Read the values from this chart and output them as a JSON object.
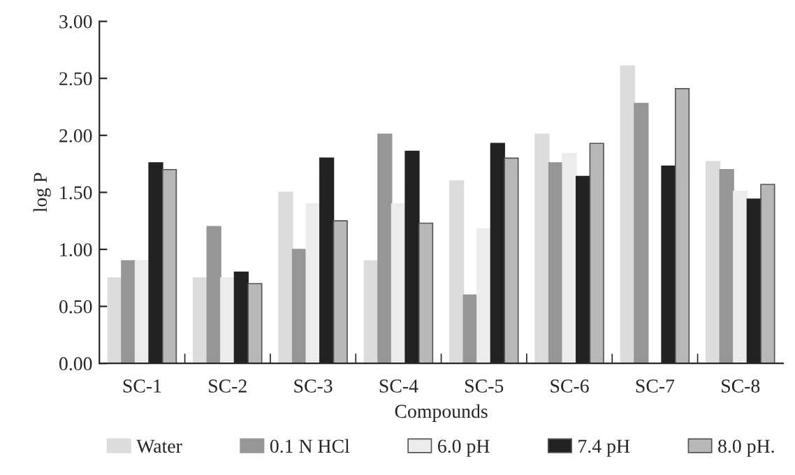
{
  "chart_data": {
    "type": "bar",
    "xlabel": "Compounds",
    "ylabel": "log P",
    "categories": [
      "SC-1",
      "SC-2",
      "SC-3",
      "SC-4",
      "SC-5",
      "SC-6",
      "SC-7",
      "SC-8"
    ],
    "series": [
      {
        "name": "Water",
        "color": "#dcdcdc",
        "values": [
          0.75,
          0.75,
          1.5,
          0.9,
          1.6,
          2.01,
          2.61,
          1.77
        ]
      },
      {
        "name": "0.1 N HCl",
        "color": "#969696",
        "values": [
          0.9,
          1.2,
          1.0,
          2.01,
          0.6,
          1.76,
          2.28,
          1.7
        ]
      },
      {
        "name": "6.0 pH",
        "color": "#ececec",
        "values": [
          0.9,
          0.75,
          1.4,
          1.4,
          1.18,
          1.84,
          null,
          1.51
        ]
      },
      {
        "name": "7.4 pH",
        "color": "#222222",
        "values": [
          1.76,
          0.8,
          1.8,
          1.86,
          1.93,
          1.64,
          1.73,
          1.44
        ]
      },
      {
        "name": "8.0 pH.",
        "color": "#b8b8b8",
        "values": [
          1.7,
          0.7,
          1.25,
          1.23,
          1.8,
          1.93,
          2.41,
          1.57
        ]
      }
    ],
    "ylim": [
      0,
      3
    ],
    "yticks": [
      {
        "value": 0,
        "label": "0.00"
      },
      {
        "value": 0.5,
        "label": "0.50"
      },
      {
        "value": 1,
        "label": "1.00"
      },
      {
        "value": 1.5,
        "label": "1.50"
      },
      {
        "value": 2,
        "label": "2.00"
      },
      {
        "value": 2.5,
        "label": "2.50"
      },
      {
        "value": 3,
        "label": "3.00"
      }
    ],
    "grid": false,
    "legend": "bottom"
  }
}
